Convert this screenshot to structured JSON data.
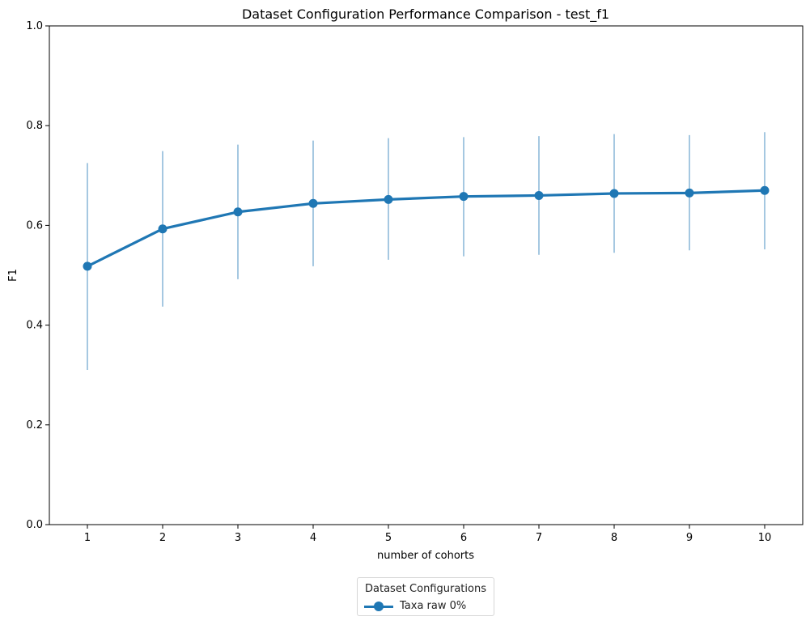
{
  "chart_data": {
    "type": "line",
    "title": "Dataset Configuration Performance Comparison - test_f1",
    "xlabel": "number of cohorts",
    "ylabel": "F1",
    "categories": [
      "1",
      "2",
      "3",
      "4",
      "5",
      "6",
      "7",
      "8",
      "9",
      "10"
    ],
    "ylim": [
      0,
      1.0
    ],
    "yticks": [
      "0.0",
      "0.2",
      "0.4",
      "0.6",
      "0.8",
      "1.0"
    ],
    "grid": false,
    "legend": {
      "title": "Dataset Configurations",
      "placement": "bottom-center, below axes"
    },
    "series": [
      {
        "name": "Taxa raw 0%",
        "color": "#1f77b4",
        "values": [
          0.518,
          0.593,
          0.627,
          0.644,
          0.652,
          0.658,
          0.66,
          0.664,
          0.665,
          0.67
        ],
        "error_low": [
          0.31,
          0.437,
          0.492,
          0.518,
          0.531,
          0.538,
          0.541,
          0.545,
          0.55,
          0.552
        ],
        "error_high": [
          0.725,
          0.749,
          0.762,
          0.77,
          0.775,
          0.777,
          0.779,
          0.783,
          0.781,
          0.787
        ]
      }
    ]
  }
}
